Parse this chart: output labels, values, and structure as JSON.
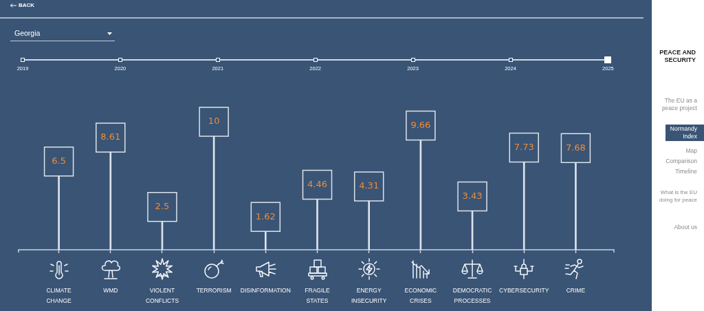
{
  "chart_data": {
    "type": "bar",
    "categories": [
      "CLIMATE CHANGE",
      "WMD",
      "VIOLENT CONFLICTS",
      "TERRORISM",
      "DISINFORMATION",
      "FRAGILE STATES",
      "ENERGY INSECURITY",
      "ECONOMIC CRISES",
      "DEMOCRATIC PROCESSES",
      "CYBERSECURITY",
      "CRIME"
    ],
    "values": [
      6.5,
      8.61,
      2.5,
      10,
      1.62,
      4.46,
      4.31,
      9.66,
      3.43,
      7.73,
      7.68
    ],
    "color": "#dde3eb",
    "data_labels": true,
    "tick_labels": "x",
    "annotations": [
      "BACK",
      "Georgia",
      "2019",
      "2020",
      "2021",
      "2022",
      "2023",
      "2024",
      "2025",
      "PEACE AND SECURITY",
      "The EU as a peace project",
      "Normandy Index",
      "Map",
      "Comparison",
      "Timeline",
      "What is the EU doing for peace",
      "About us"
    ]
  }
}
